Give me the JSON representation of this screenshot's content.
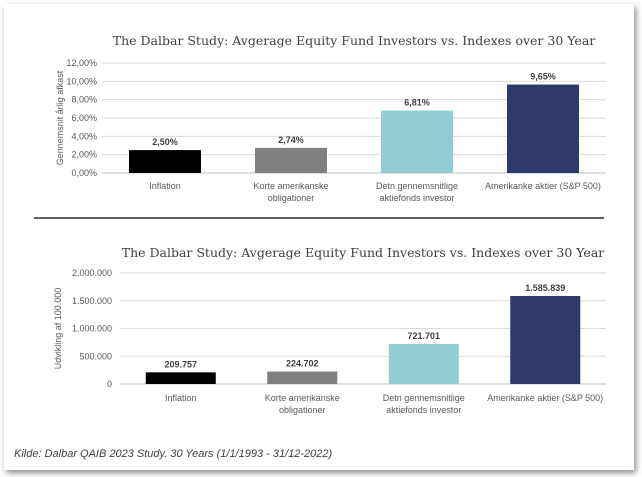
{
  "chart_data": [
    {
      "type": "bar",
      "title": "The Dalbar Study: Avgerage Equity Fund Investors vs. Indexes over 30 Year",
      "ylabel": "Gennemsnit årlig afkast",
      "ylim": [
        0,
        12
      ],
      "yticks": [
        0,
        2,
        4,
        6,
        8,
        10,
        12
      ],
      "ytick_labels": [
        "0,00%",
        "2,00%",
        "4,00%",
        "6,00%",
        "8,00%",
        "10,00%",
        "12,00%"
      ],
      "categories": [
        [
          "Inflation"
        ],
        [
          "Korte amerikanske",
          "obligationer"
        ],
        [
          "Detn gennemsnitlige",
          "aktiefonds investor"
        ],
        [
          "Amerikanke aktier (S&P 500)"
        ]
      ],
      "values": [
        2.5,
        2.74,
        6.81,
        9.65
      ],
      "data_labels": [
        "2,50%",
        "2,74%",
        "6,81%",
        "9,65%"
      ],
      "colors": [
        "#000000",
        "#7f7f7f",
        "#92cdd4",
        "#2e3a6b"
      ]
    },
    {
      "type": "bar",
      "title": "The Dalbar Study: Avgerage Equity Fund Investors vs. Indexes over 30 Year",
      "ylabel": "Udvikling af 100.000",
      "ylim": [
        0,
        2000000
      ],
      "yticks": [
        0,
        500000,
        1000000,
        1500000,
        2000000
      ],
      "ytick_labels": [
        "0",
        "500.000",
        "1.000.000",
        "1.500.000",
        "2.000.000"
      ],
      "categories": [
        [
          "Inflation"
        ],
        [
          "Korte amerikanske",
          "obligationer"
        ],
        [
          "Detn gennemsnitlige",
          "aktiefonds investor"
        ],
        [
          "Amerikanke aktier (S&P 500)"
        ]
      ],
      "values": [
        209757,
        224702,
        721701,
        1585839
      ],
      "data_labels": [
        "209.757",
        "224.702",
        "721.701",
        "1.585.839"
      ],
      "colors": [
        "#000000",
        "#7f7f7f",
        "#92cdd4",
        "#2e3a6b"
      ]
    }
  ],
  "source": "Kilde: Dalbar QAIB 2023 Study. 30 Years (1/1/1993 - 31/12-2022)"
}
